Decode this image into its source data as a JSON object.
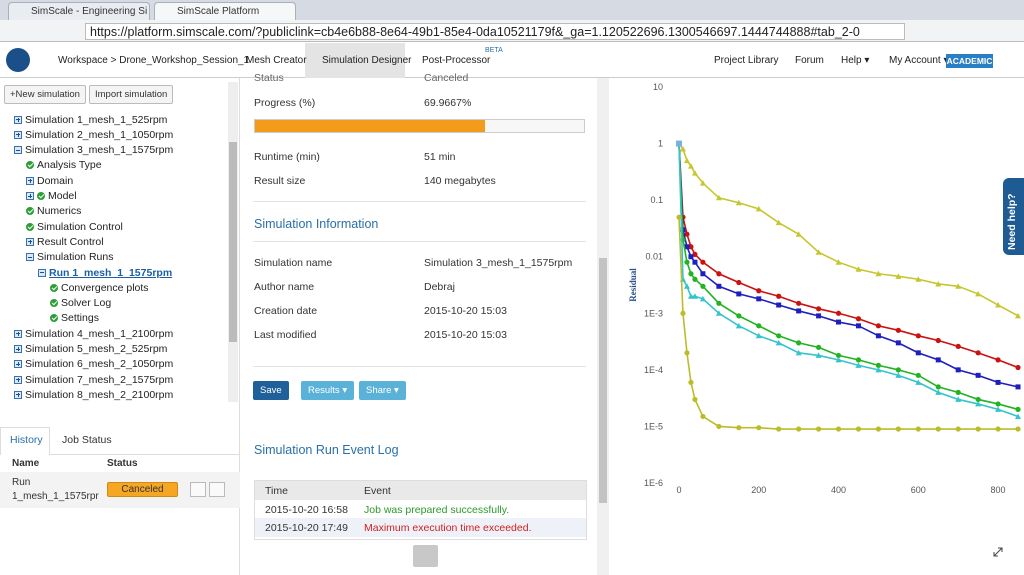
{
  "browser": {
    "tabs": [
      "SimScale - Engineering Si",
      "SimScale Platform"
    ],
    "url": "https://platform.simscale.com/?publiclink=cb4e6b88-8e64-49b1-85e4-0da10521179f&_ga=1.120522696.1300546697.1444744888#tab_2-0"
  },
  "toolbar": {
    "breadcrumb": "Workspace > Drone_Workshop_Session_1",
    "tabs": [
      "Mesh Creator",
      "Simulation Designer",
      "Post-Processor"
    ],
    "badge": "BETA",
    "links": [
      "Project Library",
      "Forum",
      "Help ▾",
      "My Account ▾"
    ],
    "plan": "ACADEMIC"
  },
  "sidebar": {
    "buttons": [
      "+New simulation",
      "Import simulation"
    ],
    "tree": [
      {
        "label": "Simulation 1_mesh_1_525rpm",
        "icons": [
          "expand"
        ]
      },
      {
        "label": "Simulation 2_mesh_1_1050rpm",
        "icons": [
          "expand"
        ]
      },
      {
        "label": "Simulation 3_mesh_1_1575rpm",
        "icons": [
          "collapse"
        ],
        "children": [
          {
            "label": "Analysis Type",
            "icons": [
              "check"
            ]
          },
          {
            "label": "Domain",
            "icons": [
              "expand"
            ]
          },
          {
            "label": "Model",
            "icons": [
              "expand",
              "check"
            ]
          },
          {
            "label": "Numerics",
            "icons": [
              "check"
            ]
          },
          {
            "label": "Simulation Control",
            "icons": [
              "check"
            ]
          },
          {
            "label": "Result Control",
            "icons": [
              "expand"
            ]
          },
          {
            "label": "Simulation Runs",
            "icons": [
              "collapse"
            ],
            "children": [
              {
                "label": "Run 1_mesh_1_1575rpm",
                "icons": [
                  "collapse"
                ],
                "active": true,
                "children": [
                  {
                    "label": "Convergence plots",
                    "icons": [
                      "check"
                    ]
                  },
                  {
                    "label": "Solver Log",
                    "icons": [
                      "check"
                    ]
                  },
                  {
                    "label": "Settings",
                    "icons": [
                      "check"
                    ]
                  }
                ]
              }
            ]
          }
        ]
      },
      {
        "label": "Simulation 4_mesh_1_2100rpm",
        "icons": [
          "expand"
        ]
      },
      {
        "label": "Simulation 5_mesh_2_525rpm",
        "icons": [
          "expand"
        ]
      },
      {
        "label": "Simulation 6_mesh_2_1050rpm",
        "icons": [
          "expand"
        ]
      },
      {
        "label": "Simulation 7_mesh_2_1575rpm",
        "icons": [
          "expand"
        ]
      },
      {
        "label": "Simulation 8_mesh_2_2100rpm",
        "icons": [
          "expand"
        ]
      }
    ],
    "panel_tabs": [
      "History",
      "Job Status"
    ],
    "jobs": {
      "columns": [
        "Name",
        "Status"
      ],
      "rows": [
        [
          "Run 1_mesh_1_1575rpr",
          "Canceled"
        ]
      ]
    }
  },
  "details": {
    "status_cut": [
      "Status",
      "Canceled"
    ],
    "progress": {
      "label": "Progress (%)",
      "value": 69.9667,
      "text": "69.9667%"
    },
    "run_fields": [
      [
        "Runtime (min)",
        "51 min"
      ],
      [
        "Result size",
        "140 megabytes"
      ]
    ],
    "info_title": "Simulation Information",
    "info_fields": [
      [
        "Simulation name",
        "Simulation 3_mesh_1_1575rpm"
      ],
      [
        "Author name",
        "Debraj"
      ],
      [
        "Creation date",
        "2015-10-20 15:03"
      ],
      [
        "Last modified",
        "2015-10-20 15:03"
      ]
    ],
    "buttons": [
      "Save",
      "Results ▾",
      "Share ▾"
    ],
    "log_title": "Simulation Run Event Log",
    "log": {
      "columns": [
        "Time",
        "Event"
      ],
      "rows": [
        [
          "2015-10-20 16:58",
          "Job was prepared successfully."
        ],
        [
          "2015-10-20 17:49",
          "Maximum execution time exceeded."
        ]
      ]
    }
  },
  "help": "Need help?",
  "chart": {
    "type": "line",
    "y_label": "Residual",
    "log_y": true,
    "grid": false,
    "x": [
      0,
      10,
      20,
      30,
      40,
      60,
      100,
      150,
      200,
      250,
      300,
      350,
      400,
      450,
      500,
      550,
      600,
      650,
      700,
      750,
      800,
      850
    ],
    "xlim": [
      -10,
      860
    ],
    "xticks": [
      0,
      200,
      400,
      600,
      800
    ],
    "ylim": [
      1e-06,
      10
    ],
    "yticks": [
      10,
      1,
      0.1,
      0.01,
      {
        "value": 0.001,
        "label": "1E-3"
      },
      {
        "value": 0.0001,
        "label": "1E-4"
      },
      {
        "value": 1e-05,
        "label": "1E-5"
      },
      {
        "value": 1e-06,
        "label": "1E-6"
      }
    ],
    "series": [
      {
        "color": "#c6c62e",
        "marker": "triangle",
        "values": [
          1,
          0.8,
          0.5,
          0.4,
          0.3,
          0.2,
          0.11,
          0.09,
          0.07,
          0.04,
          0.025,
          0.012,
          0.008,
          0.006,
          0.005,
          0.0045,
          0.004,
          0.0033,
          0.003,
          0.0022,
          0.0014,
          0.0009
        ]
      },
      {
        "color": "#cc1111",
        "marker": "circle",
        "values": [
          1,
          0.05,
          0.025,
          0.015,
          0.011,
          0.008,
          0.005,
          0.0035,
          0.0025,
          0.002,
          0.0015,
          0.0012,
          0.001,
          0.0008,
          0.0006,
          0.0005,
          0.0004,
          0.00033,
          0.00026,
          0.0002,
          0.00015,
          0.00011
        ]
      },
      {
        "color": "#1f1fbf",
        "marker": "square",
        "values": [
          1,
          0.03,
          0.015,
          0.01,
          0.008,
          0.005,
          0.003,
          0.0022,
          0.0018,
          0.0014,
          0.0011,
          0.0009,
          0.0007,
          0.0006,
          0.0004,
          0.0003,
          0.0002,
          0.00015,
          0.0001,
          8e-05,
          6e-05,
          5e-05
        ]
      },
      {
        "color": "#22b322",
        "marker": "circle",
        "values": [
          1,
          0.02,
          0.008,
          0.005,
          0.004,
          0.003,
          0.0015,
          0.0009,
          0.0006,
          0.0004,
          0.0003,
          0.00025,
          0.00018,
          0.00015,
          0.00012,
          0.0001,
          8e-05,
          5e-05,
          4e-05,
          3e-05,
          2.5e-05,
          2e-05
        ]
      },
      {
        "color": "#33c4cc",
        "marker": "triangle",
        "values": [
          1,
          0.004,
          0.003,
          0.002,
          0.002,
          0.0018,
          0.001,
          0.0006,
          0.0004,
          0.0003,
          0.0002,
          0.00018,
          0.00015,
          0.00012,
          0.0001,
          8e-05,
          6e-05,
          4e-05,
          3e-05,
          2.5e-05,
          2e-05,
          1.5e-05
        ]
      },
      {
        "color": "#bcbc2a",
        "marker": "circle",
        "values": [
          0.05,
          0.001,
          0.0002,
          6e-05,
          3e-05,
          1.5e-05,
          1e-05,
          9.5e-06,
          9.5e-06,
          9e-06,
          9e-06,
          9e-06,
          9e-06,
          9e-06,
          9e-06,
          9e-06,
          9e-06,
          9e-06,
          9e-06,
          9e-06,
          9e-06,
          9e-06
        ]
      }
    ]
  }
}
